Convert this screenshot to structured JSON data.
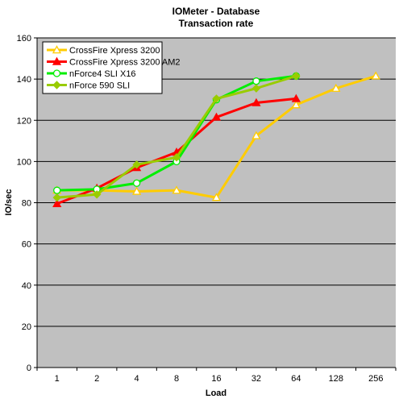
{
  "chart_data": {
    "type": "line",
    "title": "IOMeter - Database",
    "subtitle": "Transaction rate",
    "xlabel": "Load",
    "ylabel": "IO/sec",
    "categories": [
      "1",
      "2",
      "4",
      "8",
      "16",
      "32",
      "64",
      "128",
      "256"
    ],
    "ylim": [
      0,
      160
    ],
    "yticks": [
      0,
      20,
      40,
      60,
      80,
      100,
      120,
      140,
      160
    ],
    "grid": "horizontal",
    "legend_position": "top-left",
    "series": [
      {
        "name": "CrossFire Xpress 3200",
        "color": "#FFCC00",
        "marker": "triangle-open",
        "values": [
          86,
          86,
          85.5,
          86,
          82.5,
          112.5,
          127.5,
          135.5,
          141.5
        ]
      },
      {
        "name": "CrossFire Xpress 3200 AM2",
        "color": "#FF0000",
        "marker": "triangle",
        "values": [
          79.5,
          87,
          97,
          104.5,
          121.5,
          128.5,
          130.5,
          null,
          null
        ]
      },
      {
        "name": "nForce4 SLI X16",
        "color": "#00EE00",
        "marker": "circle-open",
        "values": [
          86,
          86.5,
          89.5,
          100,
          130,
          139,
          141.5,
          null,
          null
        ]
      },
      {
        "name": "nForce 590 SLI",
        "color": "#99CC00",
        "marker": "diamond",
        "values": [
          82.5,
          84,
          98.5,
          102,
          130.5,
          135.5,
          141.5,
          null,
          null
        ]
      }
    ]
  }
}
